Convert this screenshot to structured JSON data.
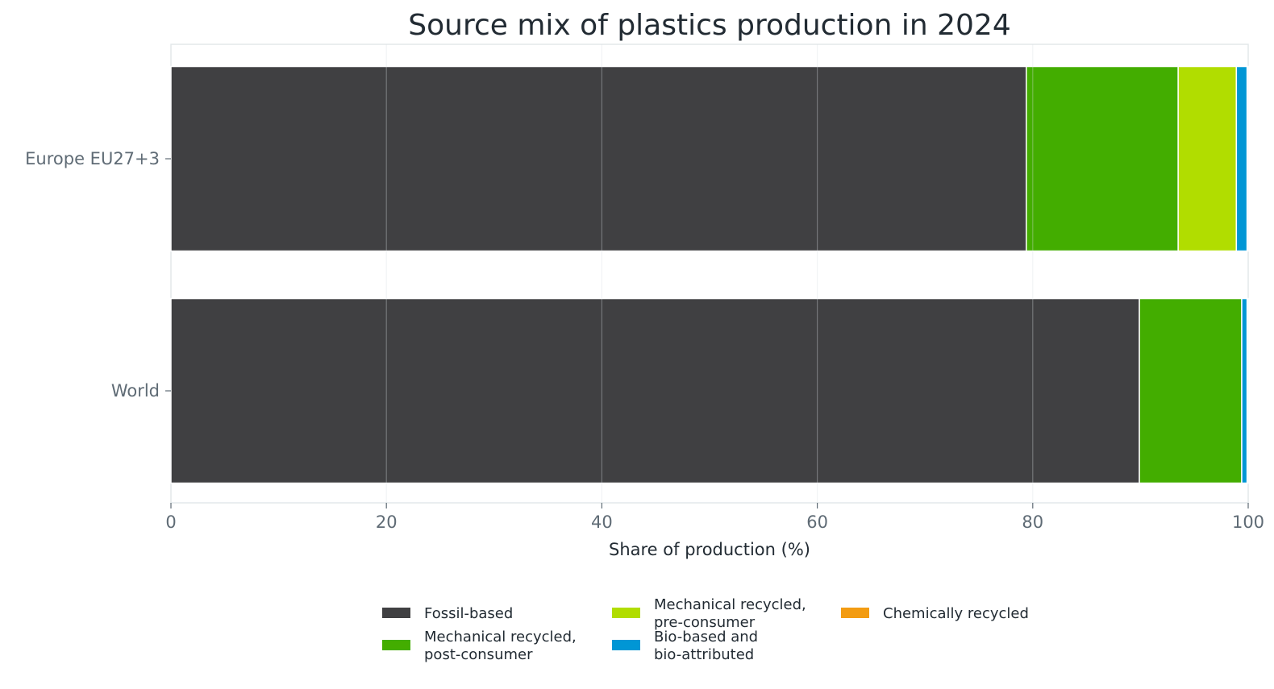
{
  "chart_data": {
    "type": "bar",
    "orientation": "horizontal",
    "stacked": true,
    "title": "Source mix of plastics production in 2024",
    "xlabel": "Share of production (%)",
    "ylabel": "",
    "xlim": [
      0,
      100
    ],
    "xticks": [
      0,
      20,
      40,
      60,
      80,
      100
    ],
    "grid": true,
    "legend_position": "bottom",
    "categories": [
      "Europe EU27+3",
      "World"
    ],
    "series": [
      {
        "name": "Fossil-based",
        "label_lines": [
          "Fossil-based"
        ],
        "color": "#404042",
        "values": [
          79.4,
          89.9
        ]
      },
      {
        "name": "Mechanical recycled, post-consumer",
        "label_lines": [
          "Mechanical recycled,",
          "post-consumer"
        ],
        "color": "#43ad00",
        "values": [
          14.1,
          9.5
        ]
      },
      {
        "name": "Mechanical recycled, pre-consumer",
        "label_lines": [
          "Mechanical recycled,",
          "pre-consumer"
        ],
        "color": "#b1dd00",
        "values": [
          5.4,
          0.0
        ]
      },
      {
        "name": "Bio-based and bio-attributed",
        "label_lines": [
          "Bio-based and",
          "bio-attributed"
        ],
        "color": "#0096d5",
        "values": [
          1.0,
          0.5
        ]
      },
      {
        "name": "Chemically recycled",
        "label_lines": [
          "Chemically recycled"
        ],
        "color": "#f39c12",
        "values": [
          0.1,
          0.1
        ]
      }
    ]
  }
}
